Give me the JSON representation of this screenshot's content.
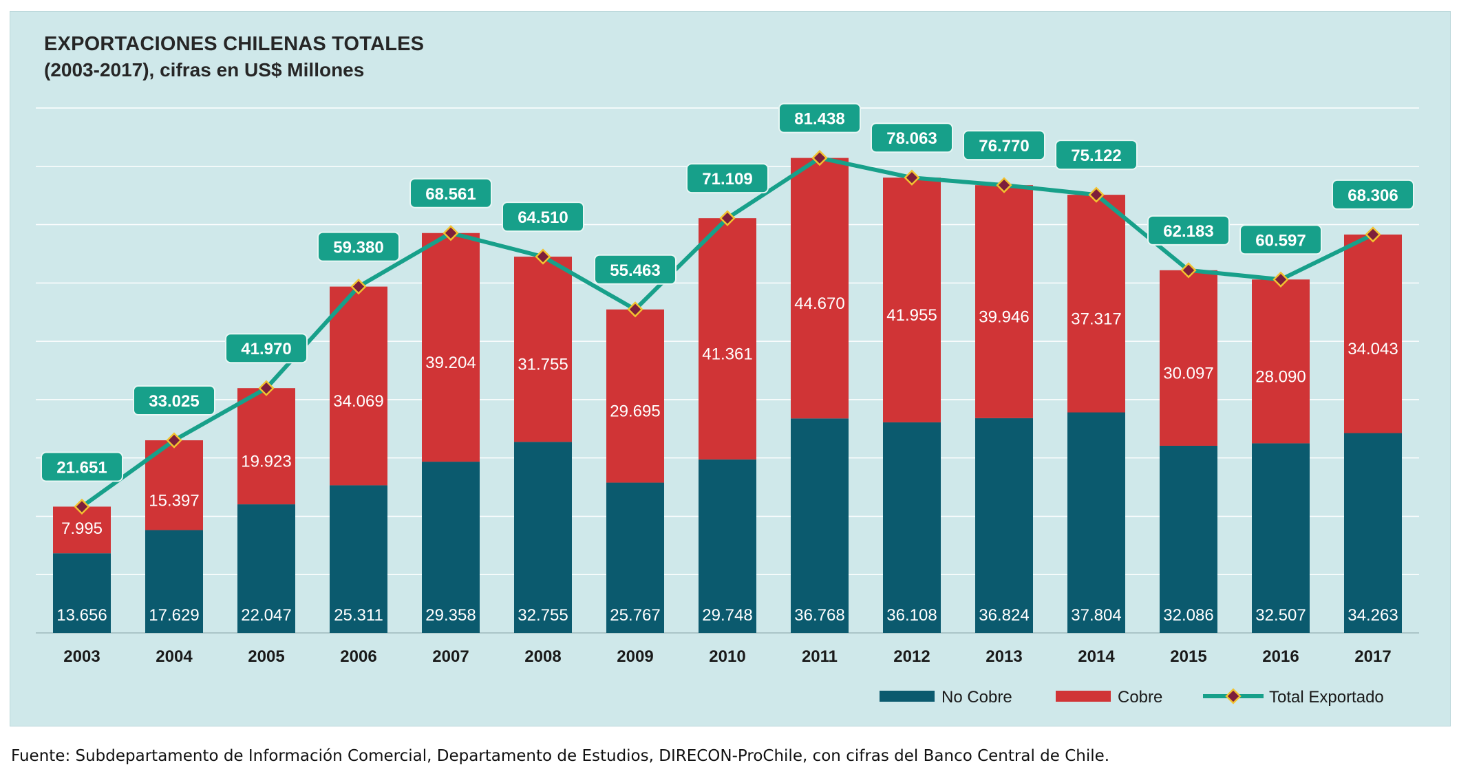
{
  "title": "EXPORTACIONES CHILENAS TOTALES",
  "subtitle": "(2003-2017), cifras en US$ Millones",
  "source": "Fuente: Subdepartamento de Información Comercial, Departamento de Estudios, DIRECON-ProChile, con cifras del Banco Central de Chile.",
  "colors": {
    "no_cobre": "#0b5a6e",
    "cobre": "#d03436",
    "total": "#17a08a",
    "marker_fill": "#7d1f3b",
    "marker_edge": "#f2c230",
    "background": "#cfe8ea",
    "grid": "#ffffff"
  },
  "chart_data": {
    "type": "bar",
    "stacked": true,
    "categories": [
      "2003",
      "2004",
      "2005",
      "2006",
      "2007",
      "2008",
      "2009",
      "2010",
      "2011",
      "2012",
      "2013",
      "2014",
      "2015",
      "2016",
      "2017"
    ],
    "series": [
      {
        "name": "No Cobre",
        "type": "bar",
        "values": [
          13656,
          17629,
          22047,
          25311,
          29358,
          32755,
          25767,
          29748,
          36768,
          36108,
          36824,
          37804,
          32086,
          32507,
          34263
        ],
        "labels": [
          "13.656",
          "17.629",
          "22.047",
          "25.311",
          "29.358",
          "32.755",
          "25.767",
          "29.748",
          "36.768",
          "36.108",
          "36.824",
          "37.804",
          "32.086",
          "32.507",
          "34.263"
        ]
      },
      {
        "name": "Cobre",
        "type": "bar",
        "values": [
          7995,
          15397,
          19923,
          34069,
          39204,
          31755,
          29695,
          41361,
          44670,
          41955,
          39946,
          37317,
          30097,
          28090,
          34043
        ],
        "labels": [
          "7.995",
          "15.397",
          "19.923",
          "34.069",
          "39.204",
          "31.755",
          "29.695",
          "41.361",
          "44.670",
          "41.955",
          "39.946",
          "37.317",
          "30.097",
          "28.090",
          "34.043"
        ]
      },
      {
        "name": "Total Exportado",
        "type": "line",
        "values": [
          21651,
          33025,
          41970,
          59380,
          68561,
          64510,
          55463,
          71109,
          81438,
          78063,
          76770,
          75122,
          62183,
          60597,
          68306
        ],
        "labels": [
          "21.651",
          "33.025",
          "41.970",
          "59.380",
          "68.561",
          "64.510",
          "55.463",
          "71.109",
          "81.438",
          "78.063",
          "76.770",
          "75.122",
          "62.183",
          "60.597",
          "68.306"
        ]
      }
    ],
    "ylim": [
      0,
      90000
    ],
    "grid": true,
    "y_axis_labels_shown": false,
    "legend_position": "bottom-right",
    "xlabel": "",
    "ylabel": ""
  }
}
